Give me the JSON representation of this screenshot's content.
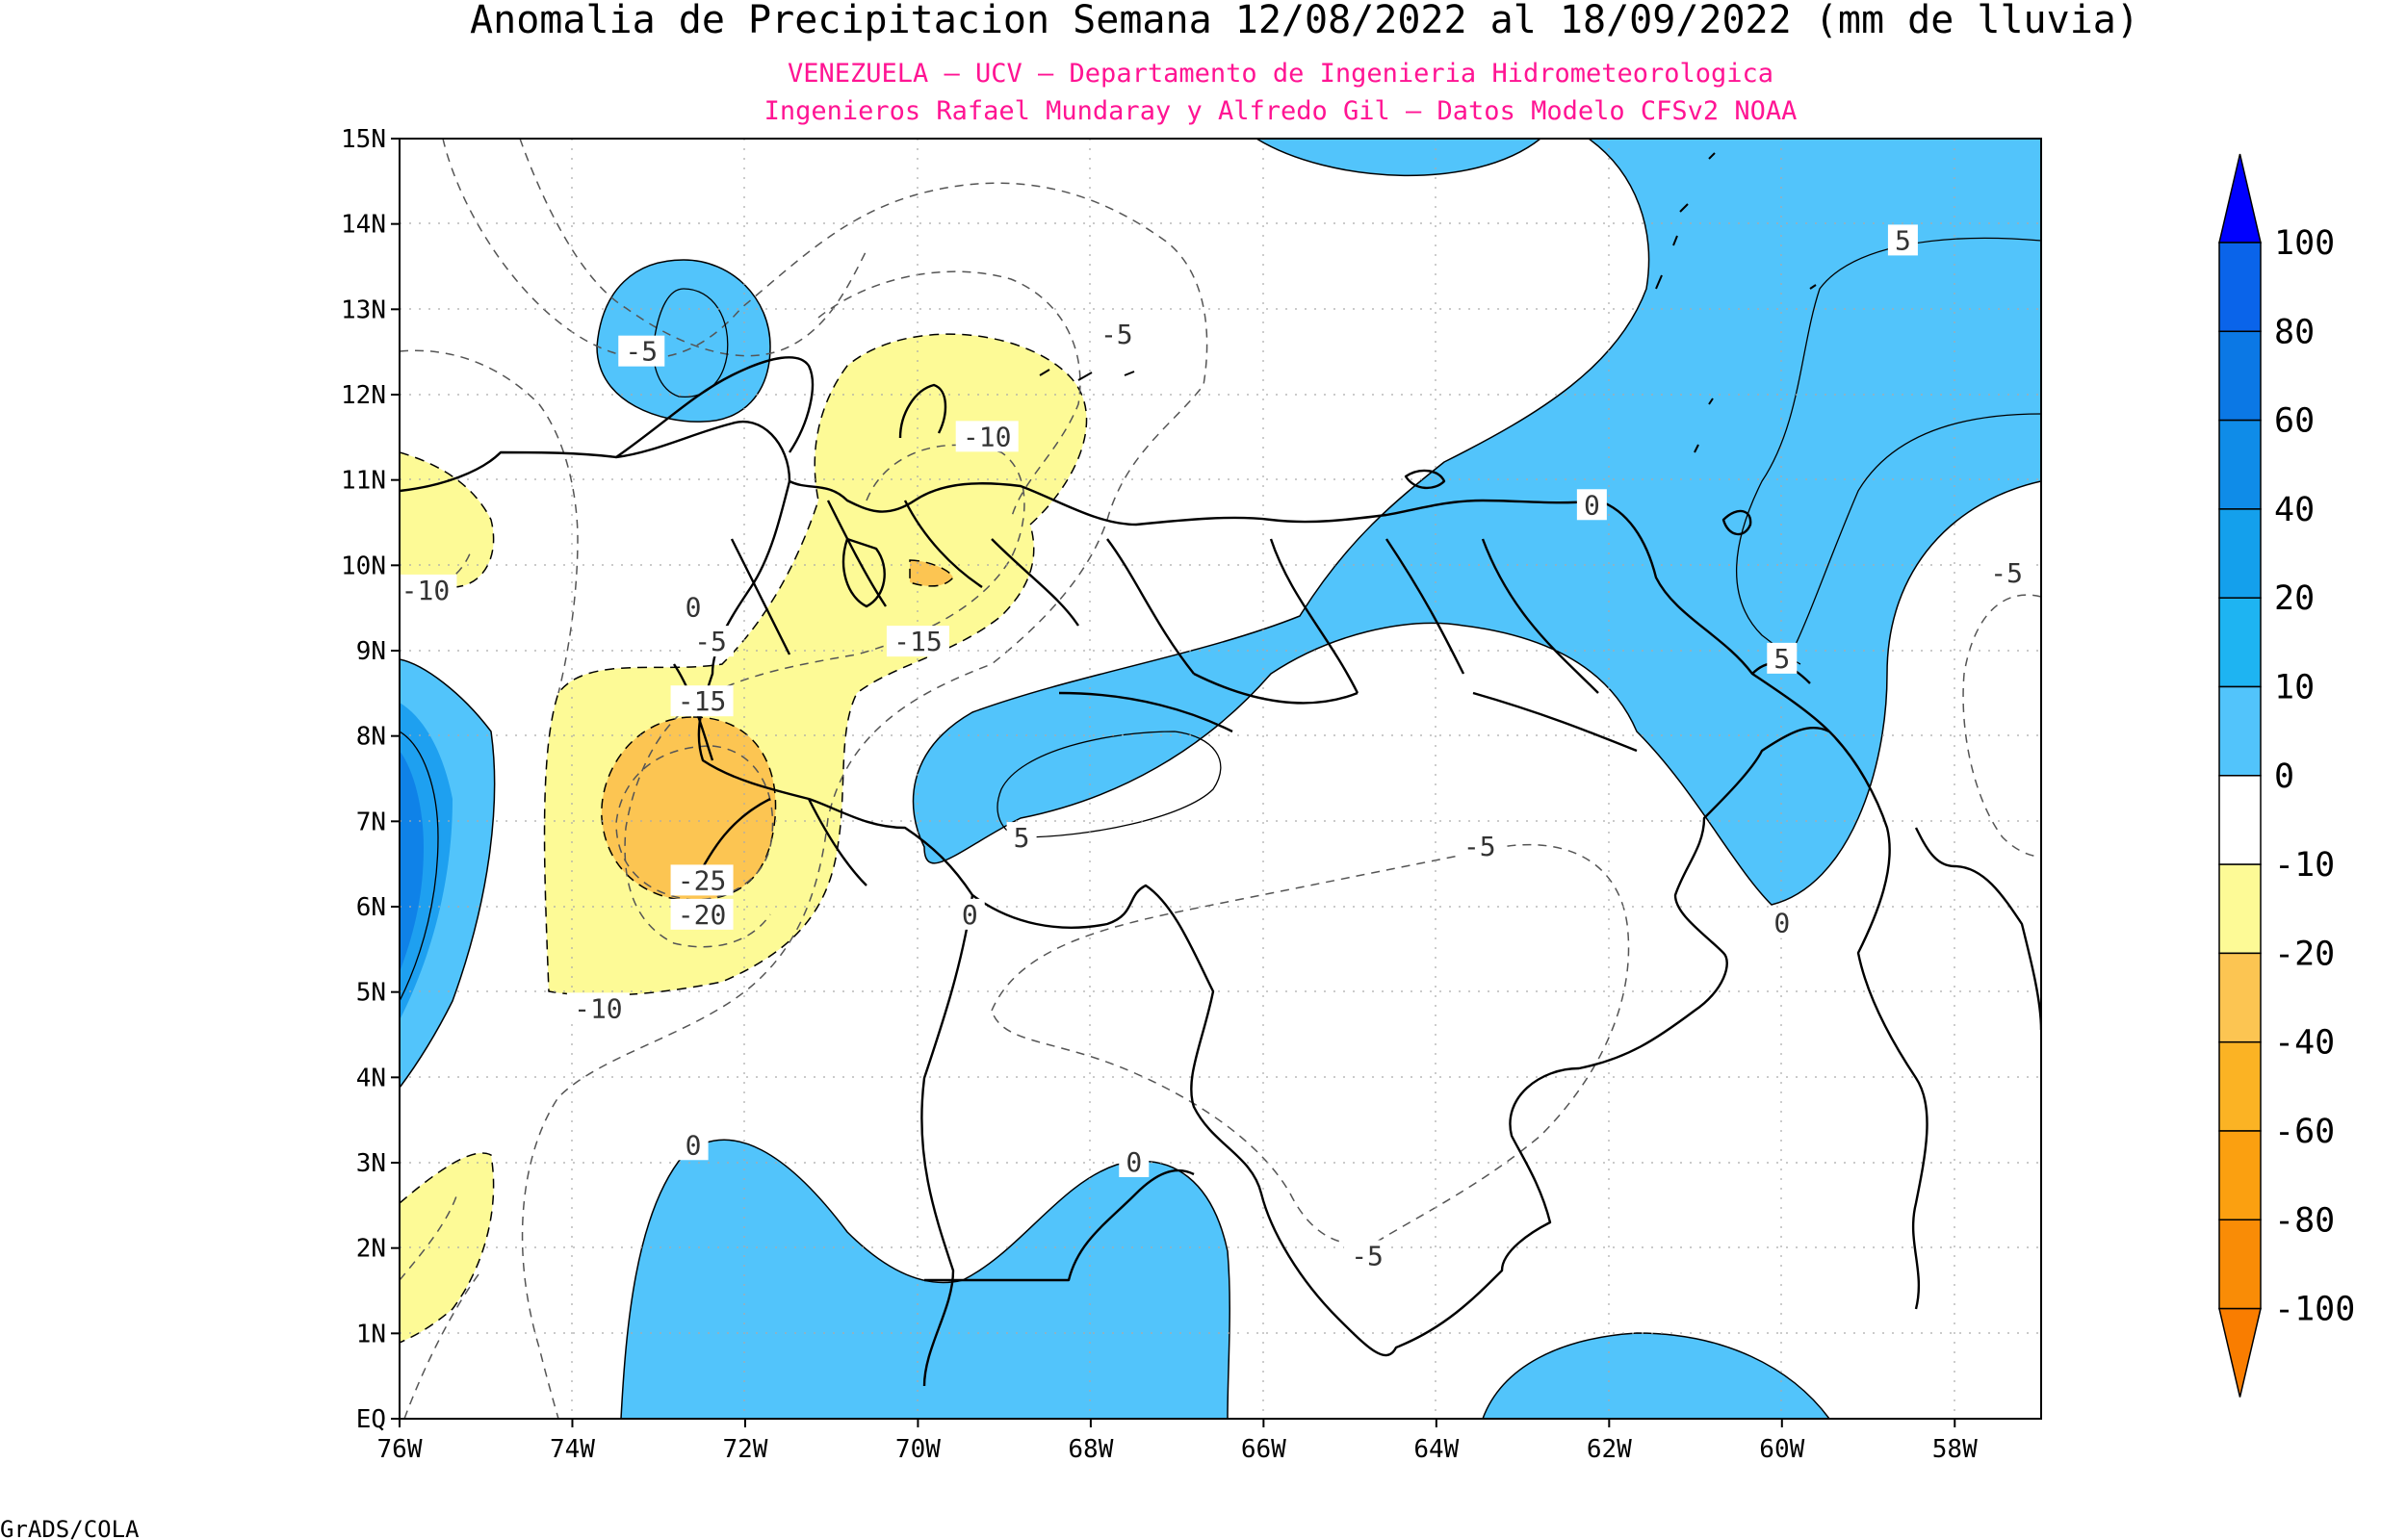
{
  "title": "Anomalia de Precipitacion Semana 12/08/2022 al 18/09/2022 (mm de lluvia)",
  "subtitle_1": "VENEZUELA — UCV — Departamento de Ingenieria Hidrometeorologica",
  "subtitle_2": "Ingenieros Rafael Mundaray y Alfredo Gil — Datos Modelo CFSv2 NOAA",
  "footer": "GrADS/COLA",
  "colors": {
    "subtitle": "#ff1493",
    "positive_fill": "#52c4fb",
    "positive_strong": "#1ea0f0",
    "positive_stronger": "#0f82e8",
    "negative_fill": "#fdfa96",
    "negative_strong": "#fcc552",
    "boundary": "#000000",
    "contour_dashed": "#555555"
  },
  "map": {
    "lon_range": [
      -76,
      -57
    ],
    "lat_range": [
      0,
      15
    ],
    "x_ticks": [
      "76W",
      "74W",
      "72W",
      "70W",
      "68W",
      "66W",
      "64W",
      "62W",
      "60W",
      "58W"
    ],
    "y_ticks": [
      "EQ",
      "1N",
      "2N",
      "3N",
      "4N",
      "5N",
      "6N",
      "7N",
      "8N",
      "9N",
      "10N",
      "11N",
      "12N",
      "13N",
      "14N",
      "15N"
    ],
    "grid": "dotted",
    "contour_labels": [
      {
        "text": "-5",
        "lon": -73.2,
        "lat": 12.5
      },
      {
        "text": "-5",
        "lon": -67.7,
        "lat": 12.7
      },
      {
        "text": "-10",
        "lon": -69.2,
        "lat": 11.5
      },
      {
        "text": "0",
        "lon": -62.2,
        "lat": 10.7
      },
      {
        "text": "5",
        "lon": -58.6,
        "lat": 13.8
      },
      {
        "text": "-5",
        "lon": -57.4,
        "lat": 9.9
      },
      {
        "text": "5",
        "lon": -60.0,
        "lat": 8.9
      },
      {
        "text": "-10",
        "lon": -75.7,
        "lat": 9.7
      },
      {
        "text": "0",
        "lon": -72.6,
        "lat": 9.5
      },
      {
        "text": "-5",
        "lon": -72.4,
        "lat": 9.1
      },
      {
        "text": "-15",
        "lon": -72.5,
        "lat": 8.4
      },
      {
        "text": "-15",
        "lon": -70.0,
        "lat": 9.1
      },
      {
        "text": "5",
        "lon": -68.8,
        "lat": 6.8
      },
      {
        "text": "0",
        "lon": -69.4,
        "lat": 5.9
      },
      {
        "text": "-25",
        "lon": -72.5,
        "lat": 6.3
      },
      {
        "text": "-20",
        "lon": -72.5,
        "lat": 5.9
      },
      {
        "text": "-10",
        "lon": -73.7,
        "lat": 4.8
      },
      {
        "text": "-5",
        "lon": -63.5,
        "lat": 6.7
      },
      {
        "text": "0",
        "lon": -60.0,
        "lat": 5.8
      },
      {
        "text": "0",
        "lon": -72.6,
        "lat": 3.2
      },
      {
        "text": "0",
        "lon": -67.5,
        "lat": 3.0
      },
      {
        "text": "-5",
        "lon": -64.8,
        "lat": 1.9
      }
    ]
  },
  "colorbar": {
    "labels": [
      "100",
      "80",
      "60",
      "40",
      "20",
      "10",
      "0",
      "-10",
      "-20",
      "-40",
      "-60",
      "-80",
      "-100"
    ],
    "colors": [
      "#0000ff",
      "#0a64ea",
      "#0b78e5",
      "#0f8ce8",
      "#14a0ec",
      "#1eb4f2",
      "#52c4fb",
      "#ffffff",
      "#fdfa96",
      "#fcc552",
      "#fbb324",
      "#fba010",
      "#f98c06",
      "#f97d00"
    ]
  }
}
